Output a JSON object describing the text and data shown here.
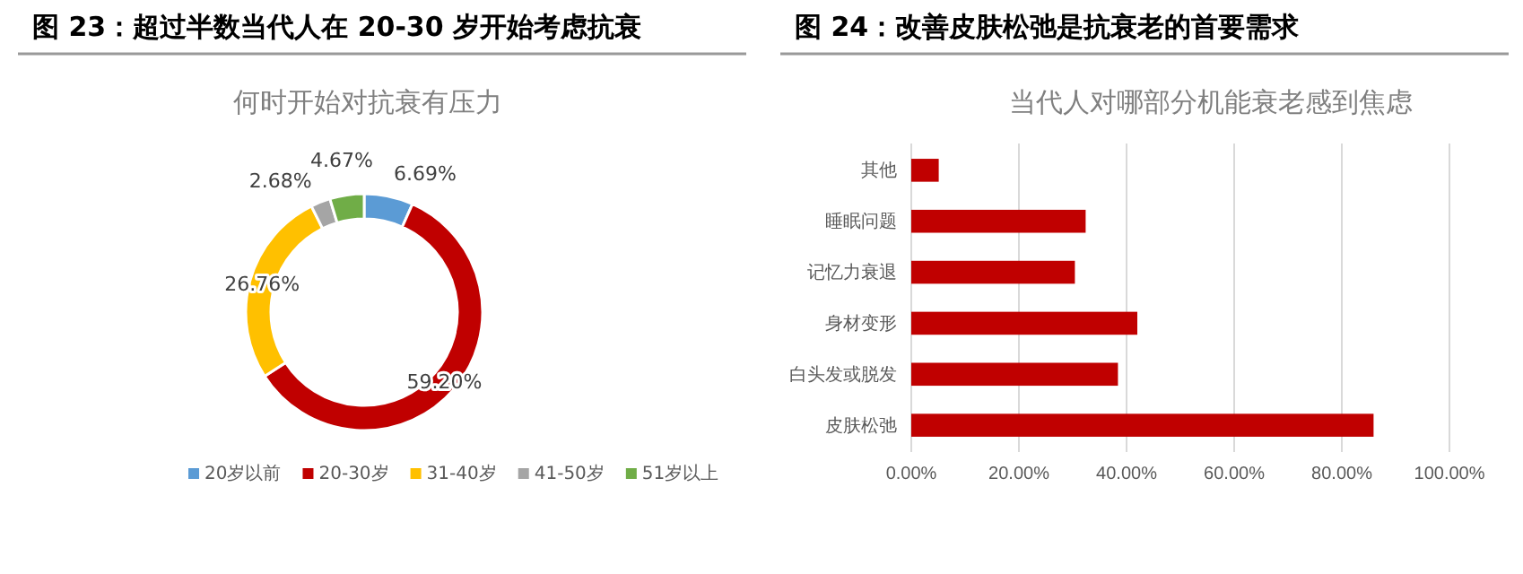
{
  "chart_data": [
    {
      "type": "donut",
      "title": "图 23：超过半数当代人在 20-30 岁开始考虑抗衰",
      "subtitle": "何时开始对抗衰有压力",
      "categories": [
        "20岁以前",
        "20-30岁",
        "31-40岁",
        "41-50岁",
        "51岁以上"
      ],
      "values": [
        6.69,
        59.2,
        26.76,
        2.68,
        4.67
      ],
      "value_labels": [
        "6.69%",
        "59.20%",
        "26.76%",
        "2.68%",
        "4.67%"
      ],
      "colors": [
        "#5b9bd5",
        "#c00000",
        "#ffc000",
        "#a5a5a5",
        "#70ad47"
      ],
      "legend": "bottom"
    },
    {
      "type": "bar",
      "orientation": "horizontal",
      "title": "图 24：改善皮肤松弛是抗衰老的首要需求",
      "subtitle": "当代人对哪部分机能衰老感到焦虑",
      "categories": [
        "其他",
        "睡眠问题",
        "记忆力衰退",
        "身材变形",
        "白头发或脱发",
        "皮肤松弛"
      ],
      "values": [
        5.1,
        32.4,
        30.4,
        42.0,
        38.4,
        85.9
      ],
      "color": "#c00000",
      "xlim": [
        0,
        100
      ],
      "xticks": [
        {
          "value": 0,
          "label": "0.00%"
        },
        {
          "value": 20,
          "label": "20.00%"
        },
        {
          "value": 40,
          "label": "40.00%"
        },
        {
          "value": 60,
          "label": "60.00%"
        },
        {
          "value": 80,
          "label": "80.00%"
        },
        {
          "value": 100,
          "label": "100.00%"
        }
      ],
      "grid": "x"
    }
  ]
}
